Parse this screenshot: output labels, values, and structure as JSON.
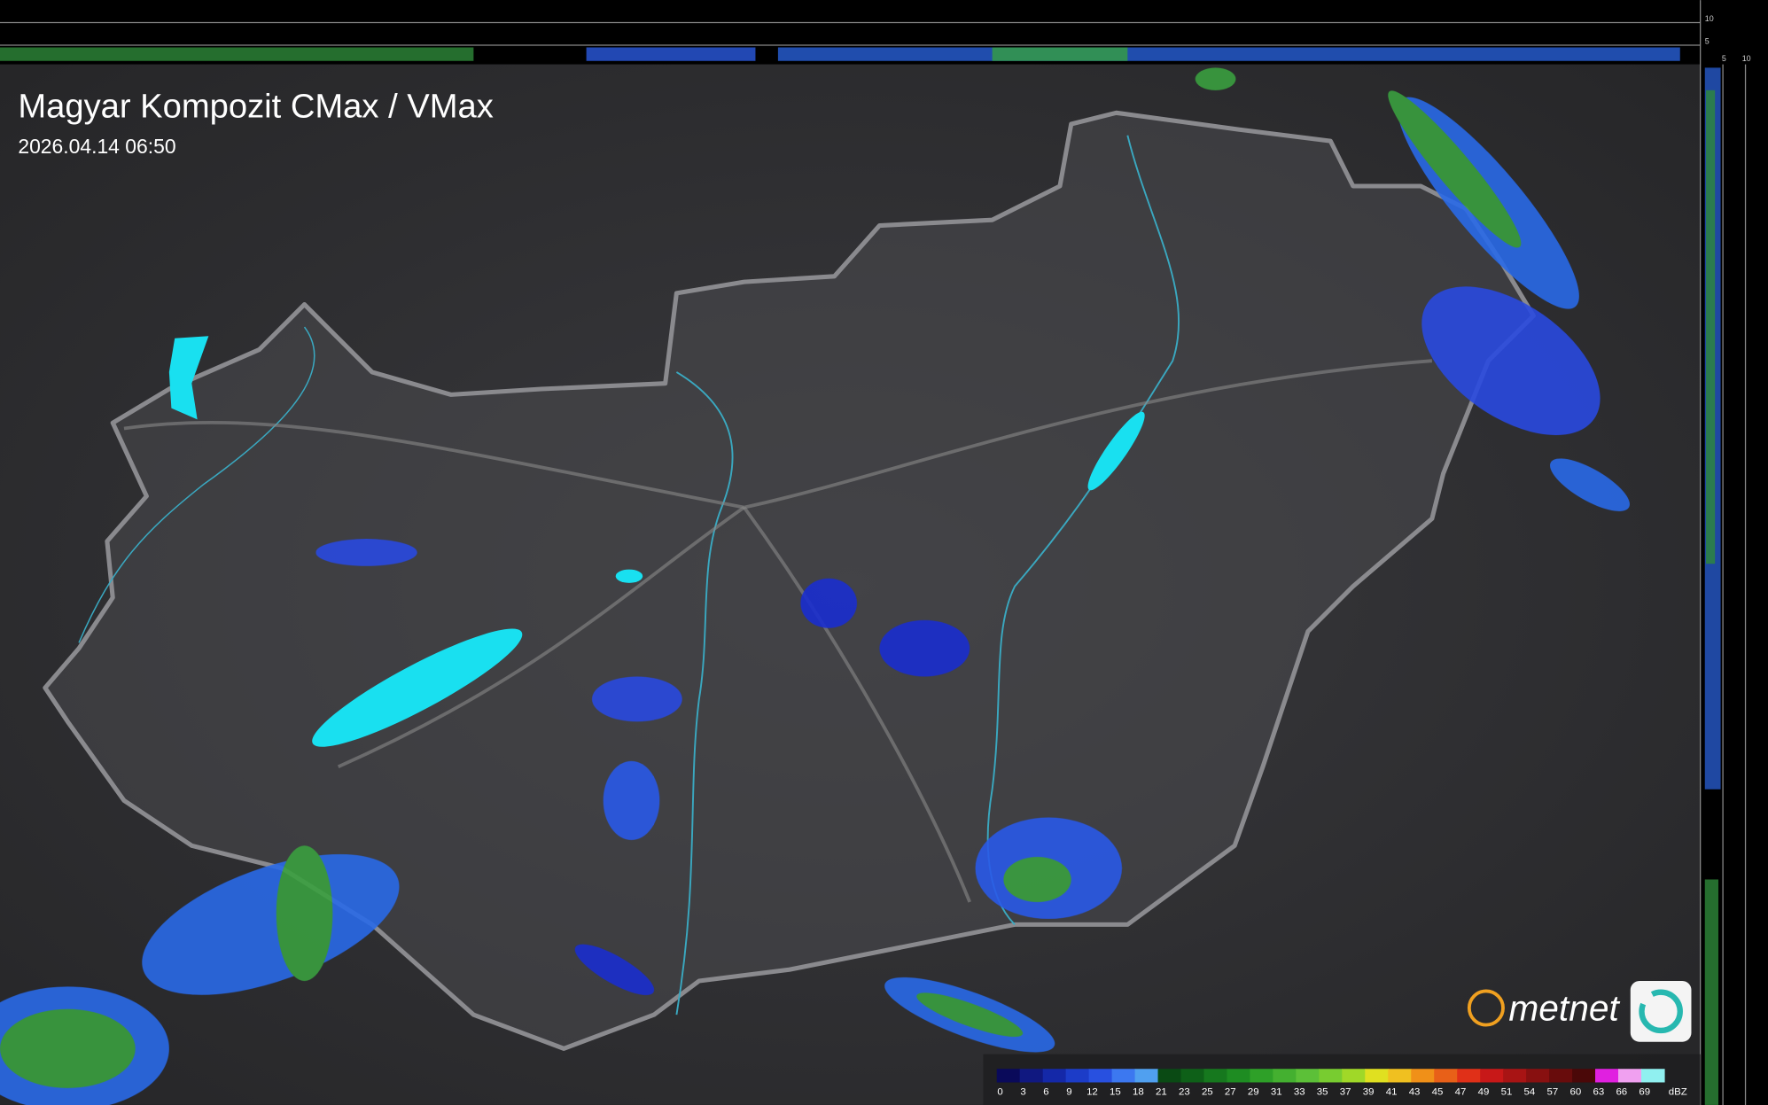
{
  "header": {
    "title": "Magyar Kompozit CMax / VMax",
    "timestamp": "2026.04.14 06:50"
  },
  "side_scale": {
    "top": [
      "10",
      "5"
    ],
    "right": [
      "5",
      "10"
    ]
  },
  "logo": {
    "text": "metnet"
  },
  "legend": {
    "unit": "dBZ",
    "labels": [
      0,
      3,
      6,
      9,
      12,
      15,
      18,
      21,
      23,
      25,
      27,
      29,
      31,
      33,
      35,
      37,
      39,
      41,
      43,
      45,
      47,
      49,
      51,
      54,
      57,
      60,
      63,
      66,
      69
    ],
    "colors": [
      "#0a0a5a",
      "#101880",
      "#1428a8",
      "#1c3cc8",
      "#2850e0",
      "#3c78f0",
      "#50a0f0",
      "#0a4a14",
      "#0e6018",
      "#16781e",
      "#1e8c22",
      "#2ea028",
      "#44b030",
      "#5cc038",
      "#78cc30",
      "#a0d828",
      "#e0e020",
      "#f0c020",
      "#f09018",
      "#e86018",
      "#e03018",
      "#c81818",
      "#a81414",
      "#881010",
      "#680c0c",
      "#4a0808",
      "#e020e0",
      "#f0a0f0",
      "#90f0f0"
    ]
  }
}
